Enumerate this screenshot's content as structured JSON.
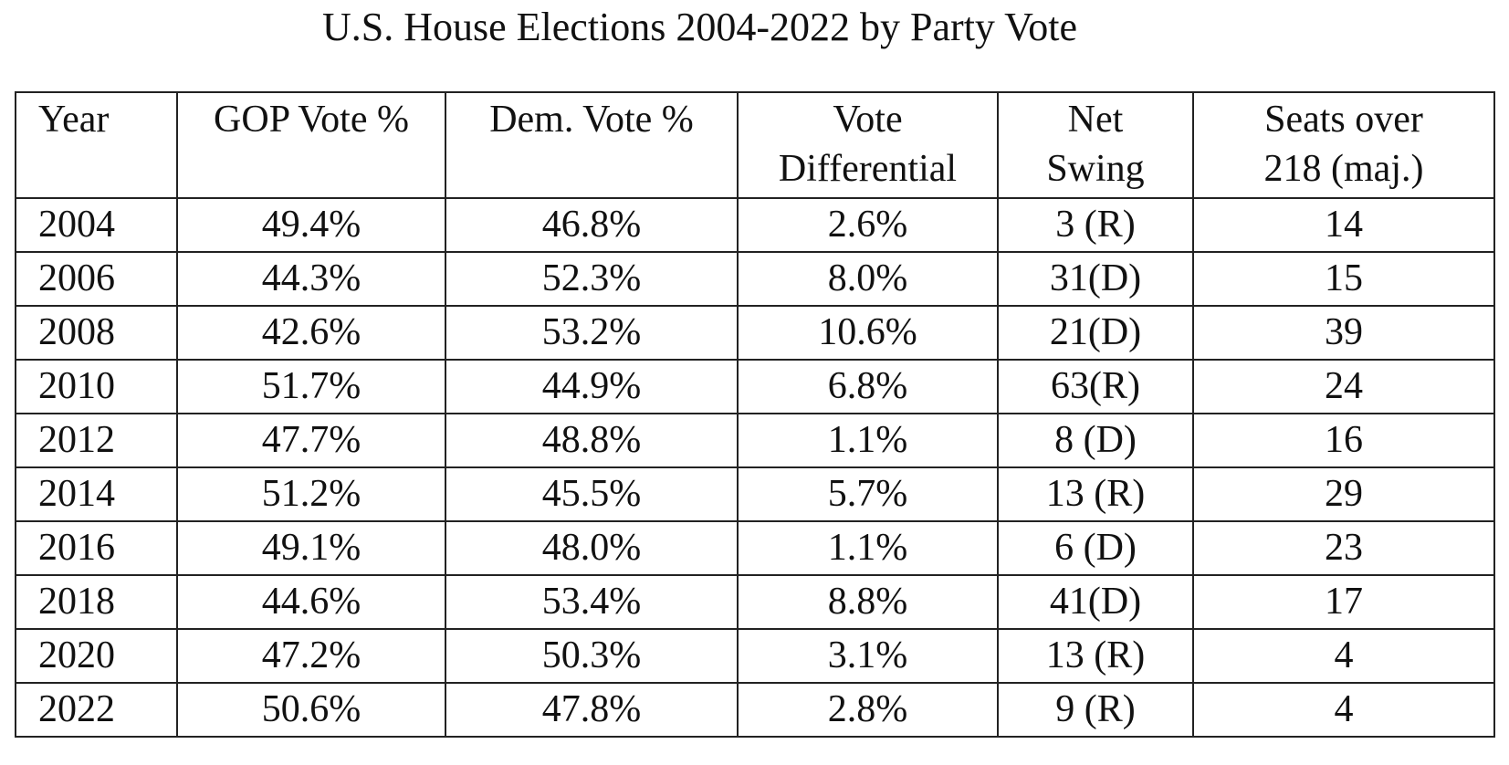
{
  "chart_data": {
    "type": "table",
    "title": "U.S. House Elections 2004-2022 by Party Vote",
    "columns": [
      {
        "key": "year",
        "lines": [
          "Year"
        ]
      },
      {
        "key": "gop",
        "lines": [
          "GOP Vote %"
        ]
      },
      {
        "key": "dem",
        "lines": [
          "Dem. Vote %"
        ]
      },
      {
        "key": "diff",
        "lines": [
          "Vote",
          "Differential"
        ]
      },
      {
        "key": "swing",
        "lines": [
          "Net",
          "Swing"
        ]
      },
      {
        "key": "seats",
        "lines": [
          "Seats over",
          "218 (maj.)"
        ]
      }
    ],
    "rows": [
      [
        "2004",
        "49.4%",
        "46.8%",
        "2.6%",
        "3 (R)",
        "14"
      ],
      [
        "2006",
        "44.3%",
        "52.3%",
        "8.0%",
        "31(D)",
        "15"
      ],
      [
        "2008",
        "42.6%",
        "53.2%",
        "10.6%",
        "21(D)",
        "39"
      ],
      [
        "2010",
        "51.7%",
        "44.9%",
        "6.8%",
        "63(R)",
        "24"
      ],
      [
        "2012",
        "47.7%",
        "48.8%",
        "1.1%",
        "8 (D)",
        "16"
      ],
      [
        "2014",
        "51.2%",
        "45.5%",
        "5.7%",
        "13 (R)",
        "29"
      ],
      [
        "2016",
        "49.1%",
        "48.0%",
        "1.1%",
        "6 (D)",
        "23"
      ],
      [
        "2018",
        "44.6%",
        "53.4%",
        "8.8%",
        "41(D)",
        "17"
      ],
      [
        "2020",
        "47.2%",
        "50.3%",
        "3.1%",
        "13 (R)",
        "4"
      ],
      [
        "2022",
        "50.6%",
        "47.8%",
        "2.8%",
        "9 (R)",
        "4"
      ]
    ]
  }
}
